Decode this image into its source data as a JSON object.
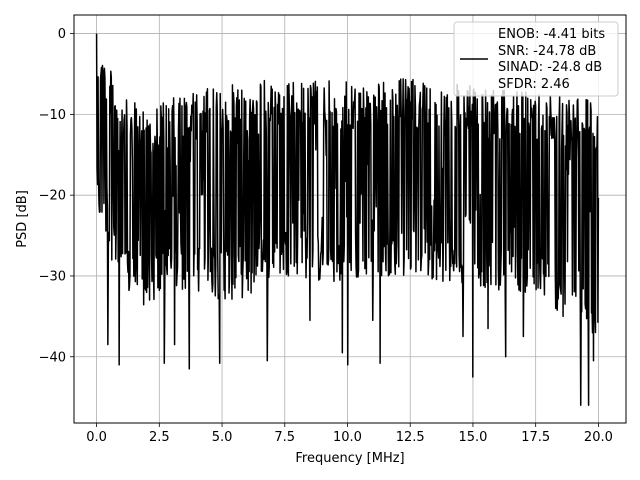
{
  "chart_data": {
    "type": "line",
    "title": "",
    "xlabel": "Frequency [MHz]",
    "ylabel": "PSD [dB]",
    "xlim": [
      -0.9,
      21.1
    ],
    "ylim": [
      -48.2,
      2.3
    ],
    "x_ticks": [
      0.0,
      2.5,
      5.0,
      7.5,
      10.0,
      12.5,
      15.0,
      17.5,
      20.0
    ],
    "x_tick_labels": [
      "0.0",
      "2.5",
      "5.0",
      "7.5",
      "10.0",
      "12.5",
      "15.0",
      "17.5",
      "20.0"
    ],
    "y_ticks": [
      0,
      -10,
      -20,
      -30,
      -40
    ],
    "y_tick_labels": [
      "0",
      "−10",
      "−20",
      "−30",
      "−40"
    ],
    "grid": true,
    "legend_position": "top-right",
    "legend_entries": [
      "ENOB: -4.41 bits",
      "SNR: -24.78 dB",
      "SINAD: -24.8 dB",
      "SFDR: 2.46"
    ],
    "series": [
      {
        "color": "#000000",
        "x_range": [
          0.0,
          20.0
        ],
        "points": 1024,
        "upper_envelope": [
          0,
          -8,
          -9,
          -8,
          -7,
          -6.5,
          -6,
          -5.5,
          -6,
          -5.5,
          -6,
          -6,
          -5.5,
          -5.5,
          -6,
          -6.5,
          -7,
          -7,
          -7,
          -7,
          -8
        ],
        "lower_envelope": [
          -22,
          -32,
          -34,
          -32,
          -32,
          -33,
          -33,
          -30,
          -30,
          -31,
          -31,
          -30,
          -30,
          -30,
          -31,
          -31,
          -32,
          -32,
          -34,
          -35,
          -38
        ],
        "spikes": [
          {
            "x": 0.0,
            "y": 0.0
          },
          {
            "x": 0.45,
            "y": -38.5
          },
          {
            "x": 0.9,
            "y": -41.0
          },
          {
            "x": 2.7,
            "y": -40.8
          },
          {
            "x": 3.1,
            "y": -38.5
          },
          {
            "x": 3.7,
            "y": -41.5
          },
          {
            "x": 4.9,
            "y": -40.8
          },
          {
            "x": 6.8,
            "y": -40.5
          },
          {
            "x": 8.5,
            "y": -35.5
          },
          {
            "x": 9.8,
            "y": -39.5
          },
          {
            "x": 10.0,
            "y": -41.0
          },
          {
            "x": 11.0,
            "y": -35.5
          },
          {
            "x": 11.3,
            "y": -40.8
          },
          {
            "x": 14.6,
            "y": -37.5
          },
          {
            "x": 15.0,
            "y": -42.5
          },
          {
            "x": 15.6,
            "y": -36.5
          },
          {
            "x": 16.3,
            "y": -40.0
          },
          {
            "x": 17.0,
            "y": -37.5
          },
          {
            "x": 18.6,
            "y": -35.0
          },
          {
            "x": 19.3,
            "y": -46.0
          },
          {
            "x": 19.6,
            "y": -46.0
          },
          {
            "x": 19.8,
            "y": -40.5
          }
        ]
      }
    ]
  }
}
